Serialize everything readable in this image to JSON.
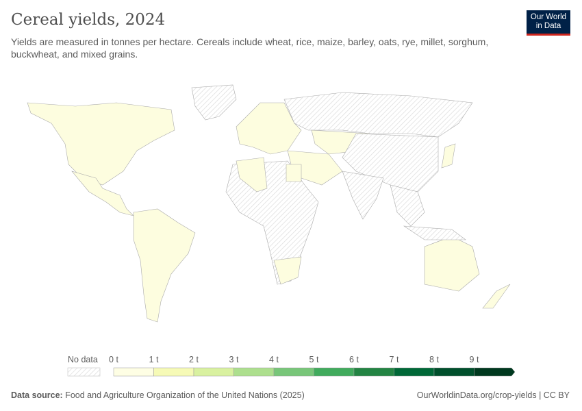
{
  "header": {
    "title": "Cereal yields, 2024",
    "subtitle": "Yields are measured in tonnes per hectare. Cereals include wheat, rice, maize, barley, oats, rye, millet, sorghum, buckwheat, and mixed grains."
  },
  "logo": {
    "line1": "Our World",
    "line2": "in Data"
  },
  "map": {
    "type": "choropleth",
    "colors": {
      "no_data": "hatched",
      "data_fill": "#fdfddf",
      "border": "#999999"
    }
  },
  "legend": {
    "no_data_label": "No data",
    "ticks": [
      "0 t",
      "1 t",
      "2 t",
      "3 t",
      "4 t",
      "5 t",
      "6 t",
      "7 t",
      "8 t",
      "9 t"
    ],
    "colors": [
      "#fefee4",
      "#f6fab6",
      "#d9f1a0",
      "#addf8e",
      "#78c679",
      "#41ab5d",
      "#238443",
      "#006837",
      "#004f2c",
      "#00391f"
    ]
  },
  "footer": {
    "source_label": "Data source:",
    "source": "Food and Agriculture Organization of the United Nations (2025)",
    "link": "OurWorldinData.org/crop-yields | CC BY"
  }
}
